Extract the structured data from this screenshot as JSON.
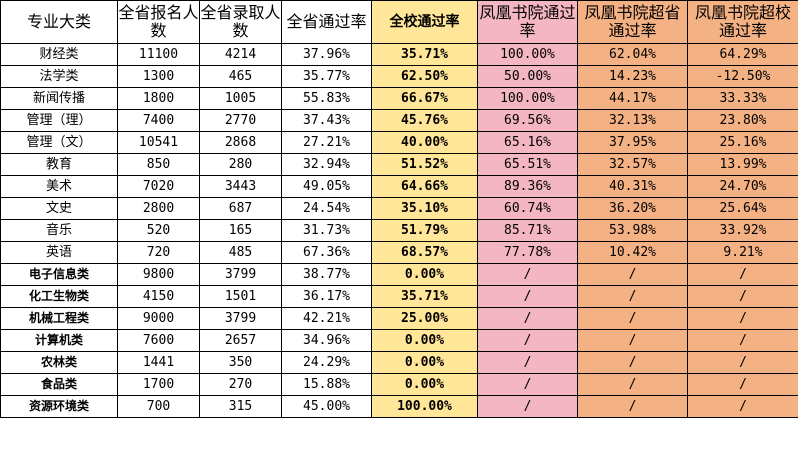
{
  "headers": [
    "专业大类",
    "全省报名人数",
    "全省录取人数",
    "全省通过率",
    "全校通过率",
    "凤凰书院通过率",
    "凤凰书院超省通过率",
    "凤凰书院超校通过率"
  ],
  "rows": [
    [
      "财经类",
      "11100",
      "4214",
      "37.96%",
      "35.71%",
      "100.00%",
      "62.04%",
      "64.29%"
    ],
    [
      "法学类",
      "1300",
      "465",
      "35.77%",
      "62.50%",
      "50.00%",
      "14.23%",
      "-12.50%"
    ],
    [
      "新闻传播",
      "1800",
      "1005",
      "55.83%",
      "66.67%",
      "100.00%",
      "44.17%",
      "33.33%"
    ],
    [
      "管理（理）",
      "7400",
      "2770",
      "37.43%",
      "45.76%",
      "69.56%",
      "32.13%",
      "23.80%"
    ],
    [
      "管理（文）",
      "10541",
      "2868",
      "27.21%",
      "40.00%",
      "65.16%",
      "37.95%",
      "25.16%"
    ],
    [
      "教育",
      "850",
      "280",
      "32.94%",
      "51.52%",
      "65.51%",
      "32.57%",
      "13.99%"
    ],
    [
      "美术",
      "7020",
      "3443",
      "49.05%",
      "64.66%",
      "89.36%",
      "40.31%",
      "24.70%"
    ],
    [
      "文史",
      "2800",
      "687",
      "24.54%",
      "35.10%",
      "60.74%",
      "36.20%",
      "25.64%"
    ],
    [
      "音乐",
      "520",
      "165",
      "31.73%",
      "51.79%",
      "85.71%",
      "53.98%",
      "33.92%"
    ],
    [
      "英语",
      "720",
      "485",
      "67.36%",
      "68.57%",
      "77.78%",
      "10.42%",
      "9.21%"
    ],
    [
      "电子信息类",
      "9800",
      "3799",
      "38.77%",
      "0.00%",
      "/",
      "/",
      "/"
    ],
    [
      "化工生物类",
      "4150",
      "1501",
      "36.17%",
      "35.71%",
      "/",
      "/",
      "/"
    ],
    [
      "机械工程类",
      "9000",
      "3799",
      "42.21%",
      "25.00%",
      "/",
      "/",
      "/"
    ],
    [
      "计算机类",
      "7600",
      "2657",
      "34.96%",
      "0.00%",
      "/",
      "/",
      "/"
    ],
    [
      "农林类",
      "1441",
      "350",
      "24.29%",
      "0.00%",
      "/",
      "/",
      "/"
    ],
    [
      "食品类",
      "1700",
      "270",
      "15.88%",
      "0.00%",
      "/",
      "/",
      "/"
    ],
    [
      "资源环境类",
      "700",
      "315",
      "45.00%",
      "100.00%",
      "/",
      "/",
      "/"
    ]
  ],
  "colors": {
    "school_rate": "#ffe699",
    "academy_rate": "#f4b6c2",
    "academy_over": "#f4b183"
  }
}
